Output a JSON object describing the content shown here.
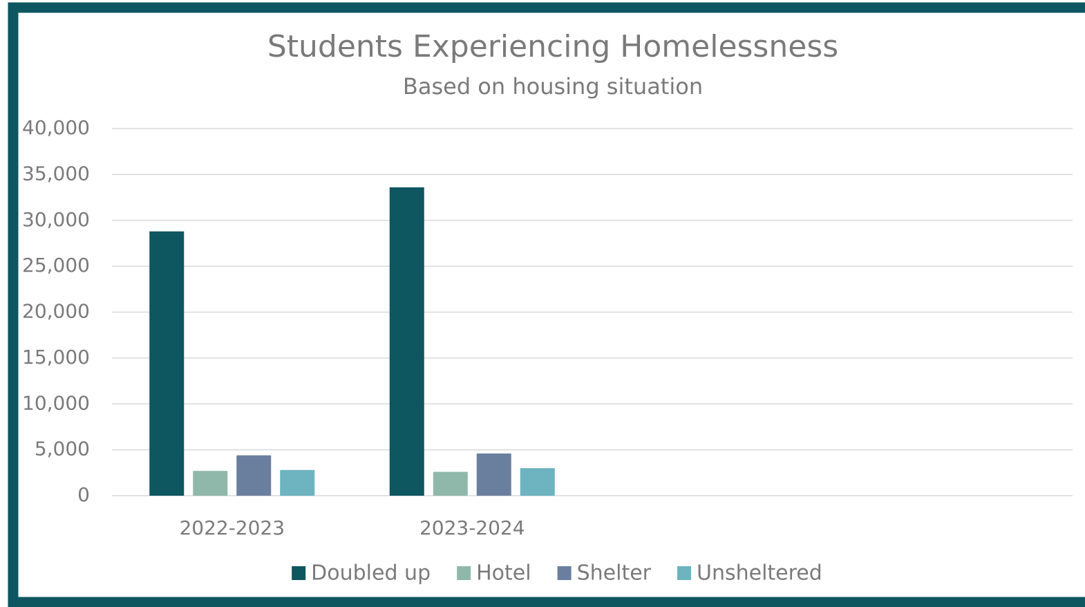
{
  "chart_data": {
    "type": "bar",
    "title": "Students Experiencing Homelessness",
    "subtitle": "Based on housing situation",
    "categories": [
      "2022-2023",
      "2023-2024",
      null,
      null
    ],
    "series": [
      {
        "name": "Doubled up",
        "color": "#0e5660",
        "values": [
          28800,
          33600,
          null,
          null
        ]
      },
      {
        "name": "Hotel",
        "color": "#8fb8aa",
        "values": [
          2700,
          2600,
          null,
          null
        ]
      },
      {
        "name": "Shelter",
        "color": "#6a7f9e",
        "values": [
          4400,
          4600,
          null,
          null
        ]
      },
      {
        "name": "Unsheltered",
        "color": "#6db3c0",
        "values": [
          2800,
          3000,
          null,
          null
        ]
      }
    ],
    "ylim": [
      0,
      40000
    ],
    "yticks": [
      0,
      {
        "value": 5000,
        "label": "5,000"
      },
      {
        "value": 10000,
        "label": "10,000"
      },
      {
        "value": 15000,
        "label": "15,000"
      },
      {
        "value": 20000,
        "label": "20,000"
      },
      {
        "value": 25000,
        "label": "25,000"
      },
      {
        "value": 30000,
        "label": "30,000"
      },
      {
        "value": 35000,
        "label": "35,000"
      },
      {
        "value": 40000,
        "label": "40,000"
      }
    ],
    "grid": true,
    "legend": "bottom"
  }
}
